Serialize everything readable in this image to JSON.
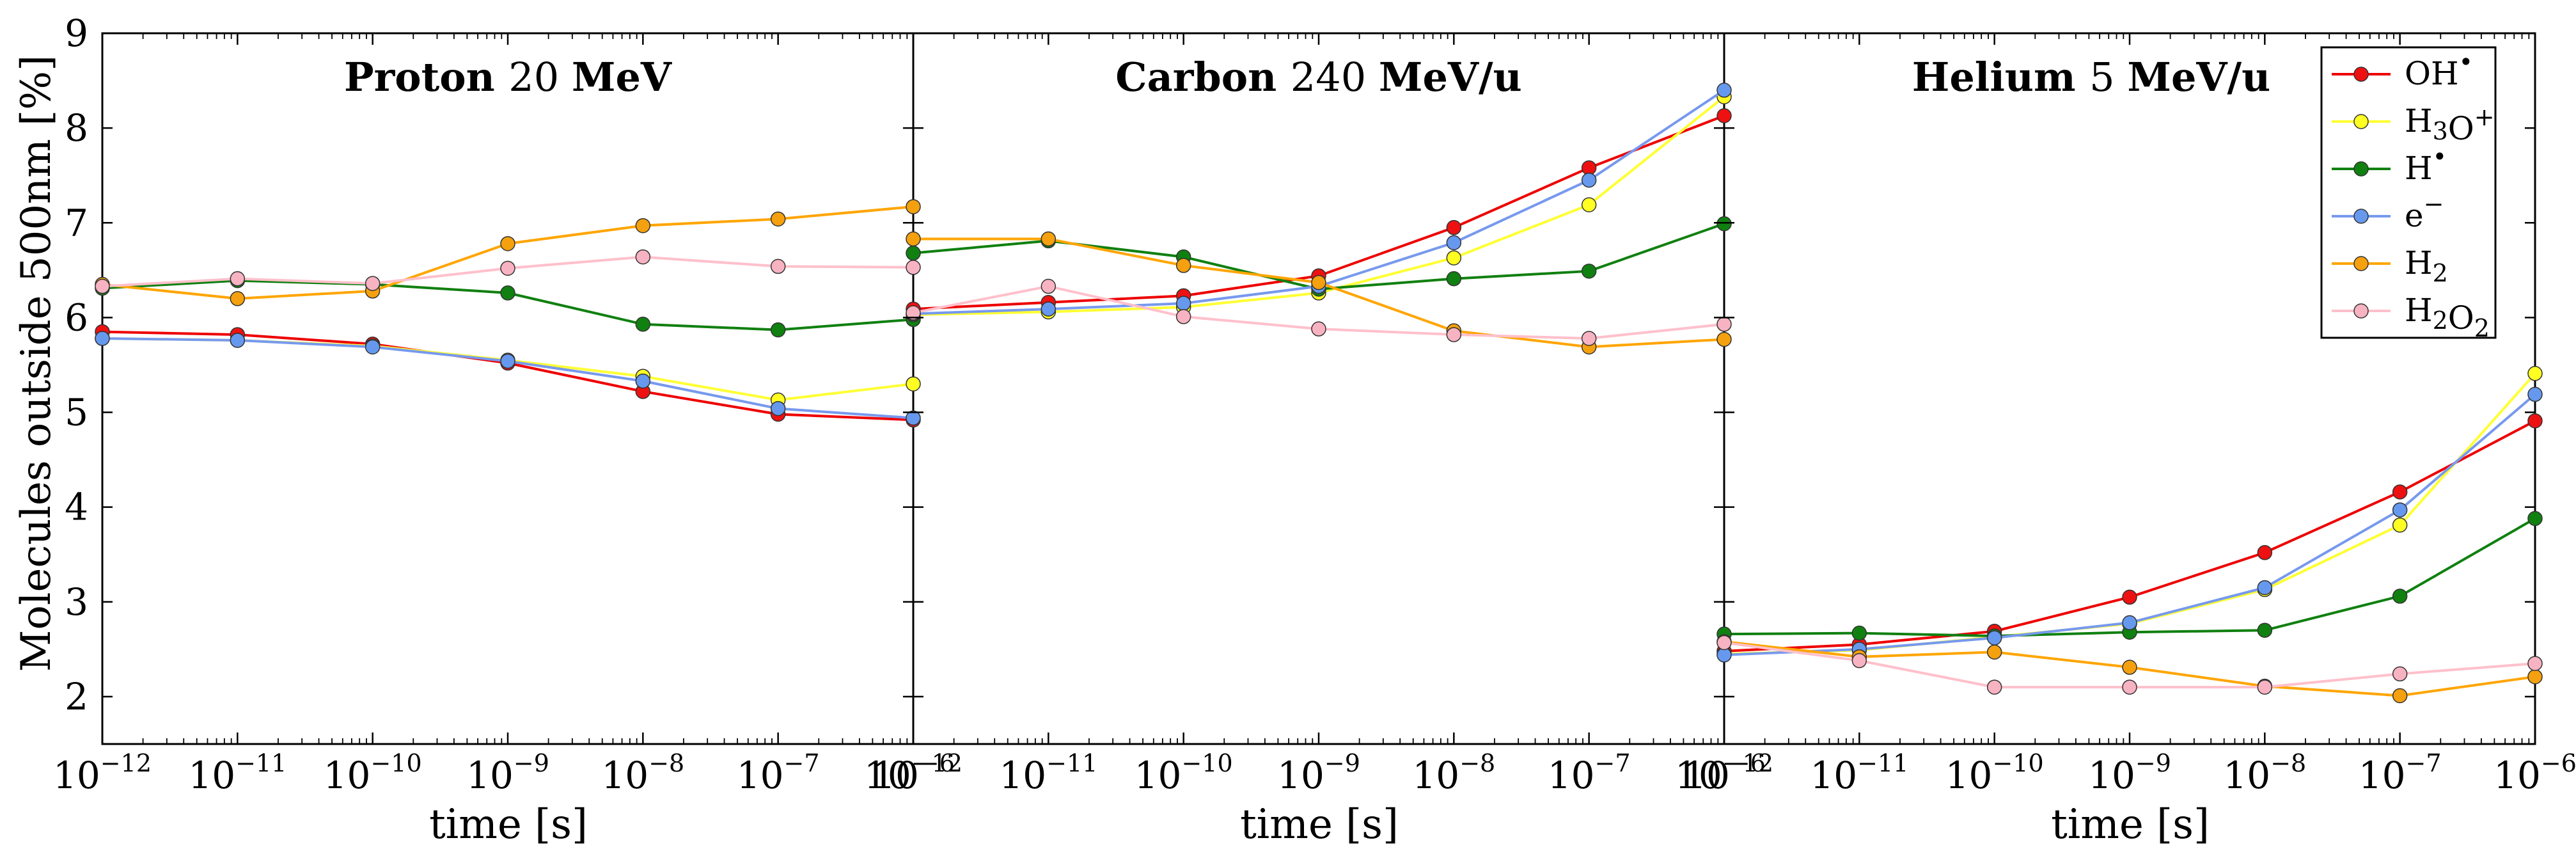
{
  "chart_data": {
    "type": "line",
    "ylabel": "Molecules outside 500nm [%]",
    "ylim": [
      1.5,
      9
    ],
    "yticks": [
      "2",
      "3",
      "4",
      "5",
      "6",
      "7",
      "8",
      "9"
    ],
    "xlabel": "time [s]",
    "xscale": "log",
    "xlim_exponent": [
      -12,
      -6
    ],
    "xtick_base": "10",
    "xtick_exponents": [
      "−12",
      "−11",
      "−10",
      "−9",
      "−8",
      "−7",
      "−6"
    ],
    "x_exponents": [
      -12,
      -11,
      -10,
      -9,
      -8,
      -7,
      -6
    ],
    "legend": {
      "position": "top-right",
      "entries": [
        {
          "key": "OH",
          "label": "OH",
          "superscript": "•",
          "subscript": ""
        },
        {
          "key": "H3O",
          "label": "H3O",
          "superscript": "+",
          "subscript": ""
        },
        {
          "key": "H",
          "label": "H",
          "superscript": "•",
          "subscript": ""
        },
        {
          "key": "e",
          "label": "e",
          "superscript": "−",
          "subscript": ""
        },
        {
          "key": "H2",
          "label": "H2",
          "superscript": "",
          "subscript": ""
        },
        {
          "key": "H2O2",
          "label": "H2O2",
          "superscript": "",
          "subscript": ""
        }
      ]
    },
    "colors": {
      "OH": {
        "line": "#ee0000",
        "marker": "#ee1111"
      },
      "H3O": {
        "line": "#ffff33",
        "marker": "#ffff22"
      },
      "H": {
        "line": "#108010",
        "marker": "#108010"
      },
      "e": {
        "line": "#7799ee",
        "marker": "#6699ee"
      },
      "H2": {
        "line": "#ffa500",
        "marker": "#f5a00e"
      },
      "H2O2": {
        "line": "#ffc0cb",
        "marker": "#f7b3c2"
      }
    },
    "panels": [
      {
        "title_word": "Proton",
        "title_number": "20",
        "title_unit": "MeV",
        "series": [
          {
            "name": "OH",
            "values": [
              5.85,
              5.82,
              5.72,
              5.52,
              5.22,
              4.98,
              4.92
            ]
          },
          {
            "name": "H3O",
            "values": [
              5.78,
              5.76,
              5.7,
              5.55,
              5.38,
              5.13,
              5.3
            ]
          },
          {
            "name": "H",
            "values": [
              6.31,
              6.39,
              6.35,
              6.26,
              5.93,
              5.87,
              5.98
            ]
          },
          {
            "name": "e",
            "values": [
              5.78,
              5.76,
              5.69,
              5.54,
              5.33,
              5.04,
              4.94
            ]
          },
          {
            "name": "H2",
            "values": [
              6.35,
              6.2,
              6.28,
              6.78,
              6.97,
              7.04,
              7.17
            ]
          },
          {
            "name": "H2O2",
            "values": [
              6.33,
              6.41,
              6.36,
              6.52,
              6.64,
              6.54,
              6.53
            ]
          }
        ]
      },
      {
        "title_word": "Carbon",
        "title_number": "240",
        "title_unit": "MeV/u",
        "series": [
          {
            "name": "OH",
            "values": [
              6.09,
              6.16,
              6.23,
              6.44,
              6.95,
              7.58,
              8.13
            ]
          },
          {
            "name": "H3O",
            "values": [
              6.03,
              6.06,
              6.11,
              6.26,
              6.63,
              7.19,
              8.33
            ]
          },
          {
            "name": "H",
            "values": [
              6.68,
              6.81,
              6.64,
              6.3,
              6.41,
              6.49,
              6.99
            ]
          },
          {
            "name": "e",
            "values": [
              6.04,
              6.09,
              6.15,
              6.33,
              6.79,
              7.45,
              8.4
            ]
          },
          {
            "name": "H2",
            "values": [
              6.83,
              6.83,
              6.55,
              6.37,
              5.86,
              5.69,
              5.77
            ]
          },
          {
            "name": "H2O2",
            "values": [
              6.05,
              6.33,
              6.01,
              5.88,
              5.82,
              5.78,
              5.93
            ]
          }
        ]
      },
      {
        "title_word": "Helium",
        "title_number": "5",
        "title_unit": "MeV/u",
        "series": [
          {
            "name": "OH",
            "values": [
              2.48,
              2.55,
              2.69,
              3.05,
              3.52,
              4.16,
              4.91
            ]
          },
          {
            "name": "H3O",
            "values": [
              2.45,
              2.49,
              2.63,
              2.77,
              3.13,
              3.81,
              5.41
            ]
          },
          {
            "name": "H",
            "values": [
              2.66,
              2.67,
              2.64,
              2.68,
              2.7,
              3.06,
              3.88
            ]
          },
          {
            "name": "e",
            "values": [
              2.44,
              2.5,
              2.62,
              2.78,
              3.15,
              3.97,
              5.19
            ]
          },
          {
            "name": "H2",
            "values": [
              2.58,
              2.42,
              2.47,
              2.31,
              2.11,
              2.01,
              2.21
            ]
          },
          {
            "name": "H2O2",
            "values": [
              2.57,
              2.38,
              2.1,
              2.1,
              2.1,
              2.24,
              2.35
            ]
          }
        ]
      }
    ]
  }
}
